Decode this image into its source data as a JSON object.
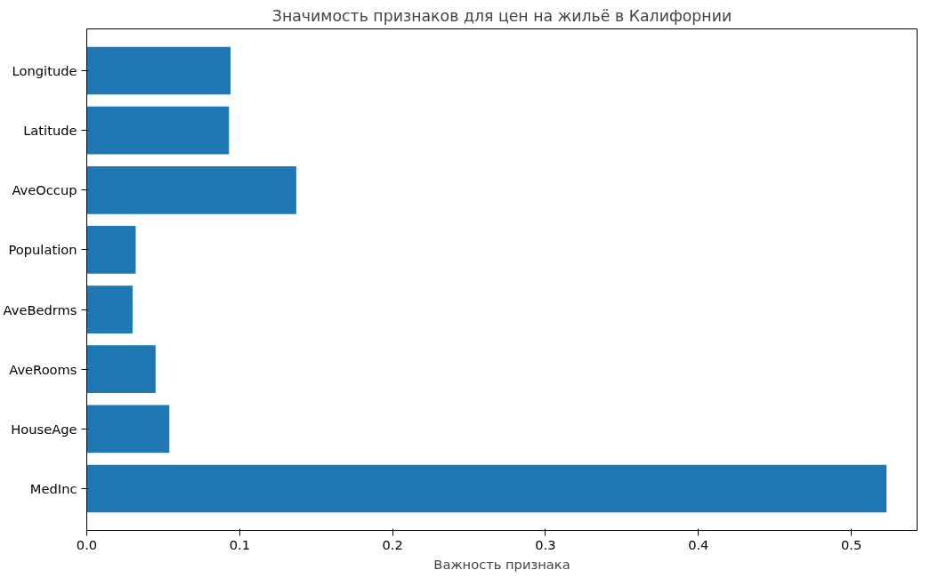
{
  "chart_data": {
    "type": "bar",
    "orientation": "horizontal",
    "title": "Значимость признаков для цен на жильё в Калифорнии",
    "xlabel": "Важность признака",
    "categories": [
      "Longitude",
      "Latitude",
      "AveOccup",
      "Population",
      "AveBedrms",
      "AveRooms",
      "HouseAge",
      "MedInc"
    ],
    "values": [
      0.094,
      0.093,
      0.137,
      0.032,
      0.03,
      0.045,
      0.054,
      0.523
    ],
    "color": "#1f77b4",
    "xlim": [
      0,
      0.543
    ],
    "xticks": [
      {
        "value": 0,
        "label": "0.0"
      },
      0.1,
      0.2,
      0.3,
      0.4,
      0.5
    ],
    "grid": false
  }
}
